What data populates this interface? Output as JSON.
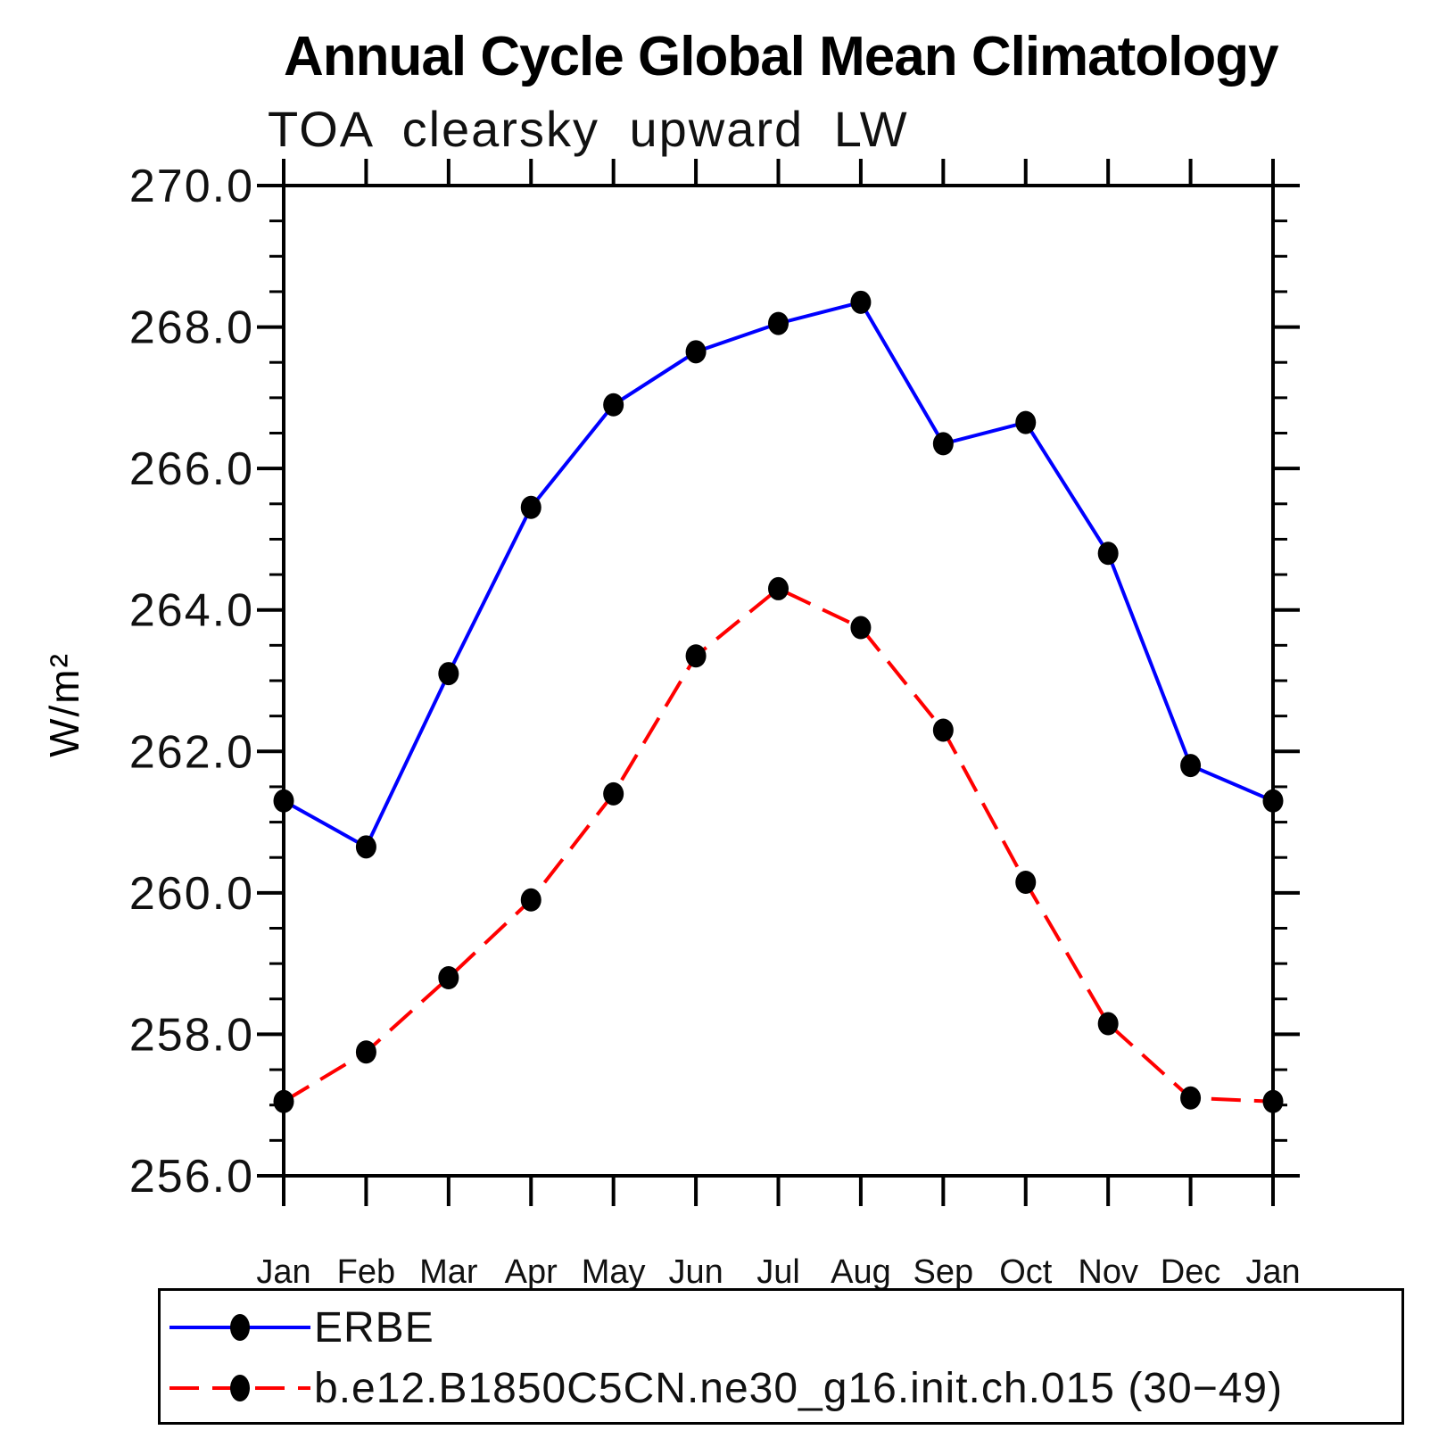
{
  "chart_data": {
    "type": "line",
    "title": "Annual Cycle Global Mean Climatology",
    "subtitle": "TOA clearsky upward LW",
    "ylabel": "W/m²",
    "categories": [
      "Jan",
      "Feb",
      "Mar",
      "Apr",
      "May",
      "Jun",
      "Jul",
      "Aug",
      "Sep",
      "Oct",
      "Nov",
      "Dec",
      "Jan"
    ],
    "series": [
      {
        "name": "ERBE",
        "color": "#0000ff",
        "line_style": "solid",
        "marker": "circle",
        "values": [
          261.3,
          260.65,
          263.1,
          265.45,
          266.9,
          267.65,
          268.05,
          268.35,
          266.35,
          266.65,
          264.8,
          261.8,
          261.3
        ]
      },
      {
        "name": "b.e12.B1850C5CN.ne30_g16.init.ch.015 (30−49)",
        "color": "#ff0000",
        "line_style": "dashed",
        "marker": "circle",
        "values": [
          257.05,
          257.75,
          258.8,
          259.9,
          261.4,
          263.35,
          264.3,
          263.75,
          262.3,
          260.15,
          258.15,
          257.1,
          257.05
        ]
      }
    ],
    "marker_color": "#000000",
    "ylim": [
      256.0,
      270.0
    ],
    "ytick_major": 2.0,
    "ytick_minor": 0.5,
    "ytick_labels": [
      "270.0",
      "268.0",
      "266.0",
      "264.0",
      "262.0",
      "260.0",
      "258.0",
      "256.0"
    ],
    "grid": "off",
    "legend_position": "bottom"
  }
}
